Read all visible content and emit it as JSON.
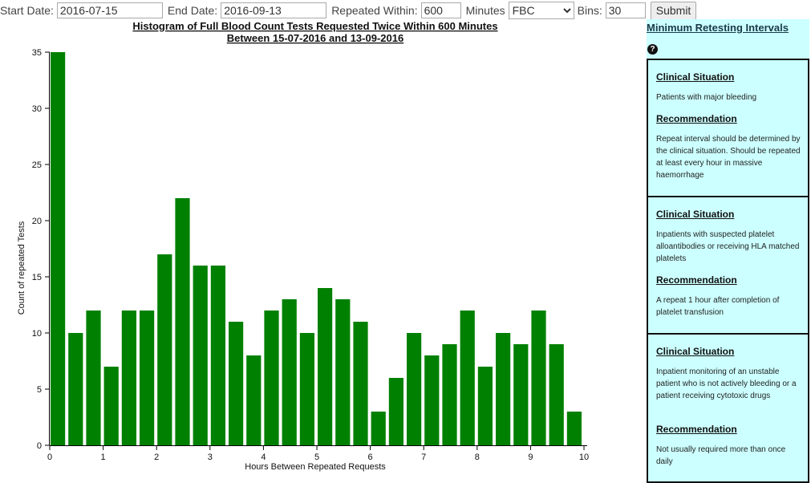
{
  "form": {
    "start_label": "Start Date:",
    "start_value": "2016-07-15",
    "end_label": "End Date:",
    "end_value": "2016-09-13",
    "within_label": "Repeated Within:",
    "within_value": "600",
    "minutes_label": "Minutes",
    "test_value": "FBC",
    "bins_label": "Bins:",
    "bins_value": "30",
    "submit_label": "Submit"
  },
  "chart_data": {
    "type": "bar",
    "title": "Histogram of Full Blood Count Tests Requested Twice Within 600 Minutes",
    "subtitle": "Between 15-07-2016 and 13-09-2016",
    "xlabel": "Hours Between Repeated Requests",
    "ylabel": "Count of repeated Tests",
    "xlim": [
      0,
      10
    ],
    "ylim": [
      0,
      35
    ],
    "x_ticks": [
      "0",
      "1",
      "2",
      "3",
      "4",
      "5",
      "6",
      "7",
      "8",
      "9",
      "10"
    ],
    "y_ticks": [
      "0",
      "5",
      "10",
      "15",
      "20",
      "25",
      "30",
      "35"
    ],
    "bin_width": 0.3333,
    "values": [
      35,
      10,
      12,
      7,
      12,
      12,
      17,
      22,
      16,
      16,
      11,
      8,
      12,
      13,
      10,
      14,
      13,
      11,
      3,
      6,
      10,
      8,
      9,
      12,
      7,
      10,
      9,
      12,
      9,
      3
    ],
    "bar_color": "#008000",
    "grid": false
  },
  "sidebar": {
    "title": "Minimum Retesting Intervals",
    "help_icon": "question-circle-icon",
    "situation_heading": "Clinical Situation",
    "recommendation_heading": "Recommendation",
    "cards": [
      {
        "situation": "Patients with major bleeding",
        "recommendation": "Repeat interval should be determined by the clinical situation. Should be repeated at least every hour in massive haemorrhage"
      },
      {
        "situation": "Inpatients with suspected platelet alloantibodies or receiving HLA matched platelets",
        "recommendation": "A repeat 1 hour after completion of platelet transfusion"
      },
      {
        "situation": "Inpatient monitoring of an unstable patient who is not actively bleeding or a patient receiving cytotoxic drugs",
        "recommendation": "Not usually required more than once daily"
      }
    ]
  }
}
